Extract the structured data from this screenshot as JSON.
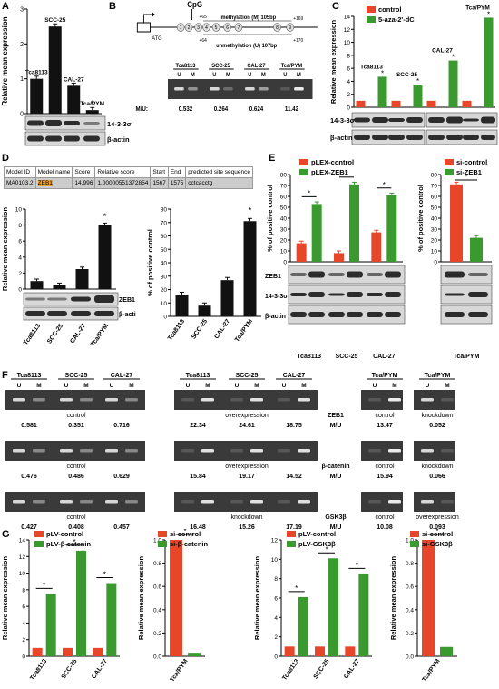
{
  "colors": {
    "red": "#e8462a",
    "green": "#3a9a30",
    "black": "#111111",
    "blot_dark": "#1a1a1a",
    "blot_mid": "#888888"
  },
  "panels": {
    "A": "A",
    "B": "B",
    "C": "C",
    "D": "D",
    "E": "E",
    "F": "F",
    "G": "G"
  },
  "common": {
    "relmean": "Relative mean expression",
    "pctpos": "% of positive control",
    "beta_actin": "β-actin",
    "s1433": "14-3-3σ",
    "zeb1": "ZEB1",
    "star": "*"
  },
  "panelA": {
    "chart_data": {
      "type": "bar",
      "categories": [
        "Tca8113",
        "SCC-25",
        "CAL-27",
        "Tca/PYM"
      ],
      "values": [
        1.0,
        2.5,
        0.8,
        0.1
      ],
      "ylim": [
        0,
        3
      ],
      "yticks": [
        0,
        1,
        2,
        3
      ],
      "ylabel": "Relative mean expression"
    }
  },
  "panelB": {
    "atg": "ATG",
    "cpg": "CpG",
    "meth": "methylation (M) 105bp",
    "unmeth": "unmethylation (U) 107bp",
    "plus65": "+65",
    "plus64": "+64",
    "plus169": "+169",
    "plus170": "+170",
    "sites": [
      "1",
      "2",
      "3",
      "4",
      "5",
      "6",
      "7",
      "8",
      "9"
    ],
    "lines": [
      "Tca8113",
      "SCC-25",
      "CAL-27",
      "Tca/PYM"
    ],
    "um": [
      "U",
      "M"
    ],
    "mu_label": "M/U:",
    "mu_values": [
      "0.532",
      "0.264",
      "0.624",
      "11.42"
    ]
  },
  "panelC": {
    "chart_data": {
      "type": "bar",
      "categories": [
        "Tca8113",
        "SCC-25",
        "CAL-27",
        "Tca/PYM"
      ],
      "series": [
        {
          "name": "control",
          "values": [
            1,
            1,
            1,
            1
          ]
        },
        {
          "name": "5-aza-2'-dC",
          "values": [
            4.7,
            3.5,
            7.2,
            13.8
          ]
        }
      ],
      "ylim": [
        0,
        14
      ],
      "yticks": [
        0,
        2,
        4,
        6,
        8,
        10,
        12,
        14
      ],
      "ylabel": "Relative mean expression"
    }
  },
  "panelD": {
    "table": {
      "headers": [
        "Model ID",
        "Model name",
        "Score",
        "Relative score",
        "Start",
        "End",
        "predicted site sequence"
      ],
      "row": [
        "MA0103.2",
        "ZEB1",
        "14.996",
        "1.00000551372854",
        "1567",
        "1575",
        "cctcacctg"
      ]
    },
    "bar1": {
      "chart_data": {
        "type": "bar",
        "categories": [
          "Tca8113",
          "SCC-25",
          "CAL-27",
          "Tca/PYM"
        ],
        "values": [
          1.0,
          0.5,
          2.5,
          8.0
        ],
        "ylim": [
          0,
          10
        ],
        "yticks": [
          0,
          2,
          4,
          6,
          8,
          10
        ],
        "ylabel": "Relative mean expression"
      }
    },
    "bar2": {
      "chart_data": {
        "type": "bar",
        "categories": [
          "Tca8113",
          "SCC-25",
          "CAL-27",
          "Tca/PYM"
        ],
        "values": [
          16,
          8,
          27,
          71
        ],
        "ylim": [
          0,
          80
        ],
        "yticks": [
          0,
          10,
          20,
          30,
          40,
          50,
          60,
          70,
          80
        ],
        "ylabel": "% of positive control"
      }
    }
  },
  "panelE": {
    "left": {
      "chart_data": {
        "type": "bar",
        "categories": [
          "Tca8113",
          "SCC-25",
          "CAL-27"
        ],
        "series": [
          {
            "name": "pLEX-control",
            "values": [
              17,
              8,
              27
            ]
          },
          {
            "name": "pLEX-ZEB1",
            "values": [
              53,
              71,
              61
            ]
          }
        ],
        "ylim": [
          0,
          80
        ],
        "yticks": [
          0,
          10,
          20,
          30,
          40,
          50,
          60,
          70,
          80
        ],
        "ylabel": "% of positive control"
      }
    },
    "right": {
      "chart_data": {
        "type": "bar",
        "categories": [
          "Tca/PYM"
        ],
        "series": [
          {
            "name": "si-control",
            "values": [
              71
            ]
          },
          {
            "name": "si-ZEB1",
            "values": [
              22
            ]
          }
        ],
        "ylim": [
          0,
          80
        ],
        "yticks": [
          0,
          10,
          20,
          30,
          40,
          50,
          60,
          70,
          80
        ],
        "ylabel": "% of positive control"
      }
    }
  },
  "panelF": {
    "lines": [
      "Tca8113",
      "SCC-25",
      "CAL-27"
    ],
    "pym": "Tca/PYM",
    "um": [
      "U",
      "M"
    ],
    "rows": [
      {
        "left_label": "control",
        "left_vals": [
          "0.581",
          "0.351",
          "0.716"
        ],
        "mid_label": "overexpression",
        "mid_vals": [
          "22.34",
          "24.61",
          "18.75"
        ],
        "gene": "ZEB1",
        "mu": "M/U",
        "r1_label": "control",
        "r1_val": "13.47",
        "r2_label": "knockdown",
        "r2_val": "0.052"
      },
      {
        "left_label": "control",
        "left_vals": [
          "0.476",
          "0.486",
          "0.629"
        ],
        "mid_label": "overexpression",
        "mid_vals": [
          "15.84",
          "19.17",
          "14.52"
        ],
        "gene": "β-catenin",
        "mu": "M/U",
        "r1_label": "control",
        "r1_val": "15.94",
        "r2_label": "knockdown",
        "r2_val": "0.066"
      },
      {
        "left_label": "control",
        "left_vals": [
          "0.427",
          "0.408",
          "0.457"
        ],
        "mid_label": "knockdown",
        "mid_vals": [
          "16.48",
          "15.26",
          "17.19"
        ],
        "gene": "GSK3β",
        "mu": "M/U",
        "r1_label": "control",
        "r1_val": "10.08",
        "r2_label": "overexpression",
        "r2_val": "0.093"
      }
    ]
  },
  "panelG": {
    "charts": [
      {
        "chart_data": {
          "type": "bar",
          "categories": [
            "Tca8113",
            "SCC-25",
            "CAL-27"
          ],
          "series": [
            {
              "name": "pLV-control",
              "values": [
                1,
                1,
                1
              ]
            },
            {
              "name": "pLV-β-catenin",
              "values": [
                7.5,
                12.7,
                8.8
              ]
            }
          ],
          "ylim": [
            0,
            14
          ],
          "yticks": [
            0,
            2,
            4,
            6,
            8,
            10,
            12,
            14
          ],
          "ylabel": "Relative mean expression"
        }
      },
      {
        "chart_data": {
          "type": "bar",
          "categories": [
            "Tca/PYM"
          ],
          "series": [
            {
              "name": "si-control",
              "values": [
                1.0
              ]
            },
            {
              "name": "si-β-catenin",
              "values": [
                0.03
              ]
            }
          ],
          "ylim": [
            0,
            1.0
          ],
          "yticks": [
            0,
            0.2,
            0.4,
            0.6,
            0.8,
            1.0
          ],
          "ylabel": "Relative mean expression"
        }
      },
      {
        "chart_data": {
          "type": "bar",
          "categories": [
            "Tca8113",
            "SCC-25",
            "CAL-27"
          ],
          "series": [
            {
              "name": "pLV-control",
              "values": [
                1,
                1,
                1
              ]
            },
            {
              "name": "pLV-GSK3β",
              "values": [
                6.1,
                10.1,
                8.5
              ]
            }
          ],
          "ylim": [
            0,
            12
          ],
          "yticks": [
            0,
            2,
            4,
            6,
            8,
            10,
            12
          ],
          "ylabel": "Relative mean expression"
        }
      },
      {
        "chart_data": {
          "type": "bar",
          "categories": [
            "Tca/PYM"
          ],
          "series": [
            {
              "name": "si-control",
              "values": [
                1.0
              ]
            },
            {
              "name": "si-GSK3β",
              "values": [
                0.08
              ]
            }
          ],
          "ylim": [
            0,
            1.0
          ],
          "yticks": [
            0,
            0.2,
            0.4,
            0.6,
            0.8,
            1.0
          ],
          "ylabel": "Relative mean expression"
        }
      }
    ]
  }
}
